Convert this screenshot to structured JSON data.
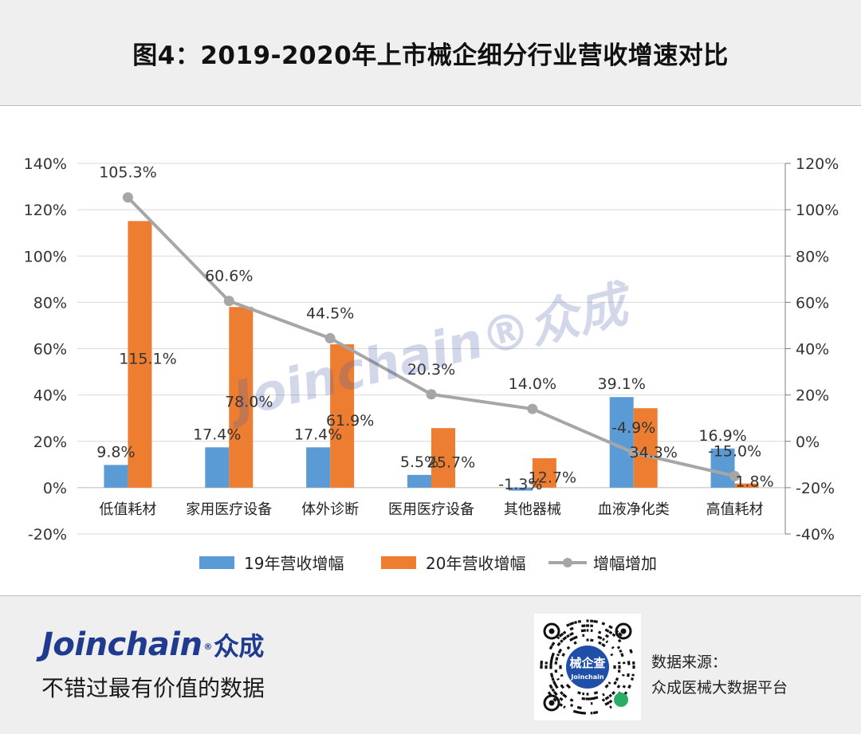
{
  "header": {
    "title": "图4：2019-2020年上市械企细分行业营收增速对比"
  },
  "chart_data": {
    "type": "bar+line",
    "categories": [
      "低值耗材",
      "家用医疗设备",
      "体外诊断",
      "医用医疗设备",
      "其他器械",
      "血液净化类",
      "高值耗材"
    ],
    "series": [
      {
        "name": "19年营收增幅",
        "type": "bar",
        "axis": "left",
        "color": "#5b9bd5",
        "values": [
          9.8,
          17.4,
          17.4,
          5.5,
          -1.3,
          39.1,
          16.9
        ],
        "labels": [
          "9.8%",
          "17.4%",
          "17.4%",
          "5.5%",
          "-1.3%",
          "39.1%",
          "16.9%"
        ]
      },
      {
        "name": "20年营收增幅",
        "type": "bar",
        "axis": "left",
        "color": "#ed7d31",
        "values": [
          115.1,
          78.0,
          61.9,
          25.7,
          12.7,
          34.3,
          1.8
        ],
        "labels": [
          "115.1%",
          "78.0%",
          "61.9%",
          "25.7%",
          "12.7%",
          "34.3%",
          "1.8%"
        ]
      },
      {
        "name": "增幅增加",
        "type": "line",
        "axis": "right",
        "color": "#a6a6a6",
        "values": [
          105.3,
          60.6,
          44.5,
          20.3,
          14.0,
          -4.9,
          -15.0
        ],
        "labels": [
          "105.3%",
          "60.6%",
          "44.5%",
          "20.3%",
          "14.0%",
          "-4.9%",
          "-15.0%"
        ]
      }
    ],
    "left_axis": {
      "min": -20,
      "max": 140,
      "step": 20,
      "ticks": [
        "-20%",
        "0%",
        "20%",
        "40%",
        "60%",
        "80%",
        "100%",
        "120%",
        "140%"
      ]
    },
    "right_axis": {
      "min": -40,
      "max": 120,
      "step": 20,
      "ticks": [
        "-40%",
        "-20%",
        "0%",
        "20%",
        "40%",
        "60%",
        "80%",
        "100%",
        "120%"
      ]
    },
    "grid": true,
    "legend": "bottom",
    "watermark": "Joinchain®众成"
  },
  "footer": {
    "brand": {
      "name": "Joinchain",
      "reg": "®",
      "cn": "众成"
    },
    "slogan": "不错过最有价值的数据",
    "qr_label": "械企查",
    "qr_sublabel": "Joinchain",
    "source_label": "数据来源：",
    "source_value": "众成医械大数据平台"
  }
}
